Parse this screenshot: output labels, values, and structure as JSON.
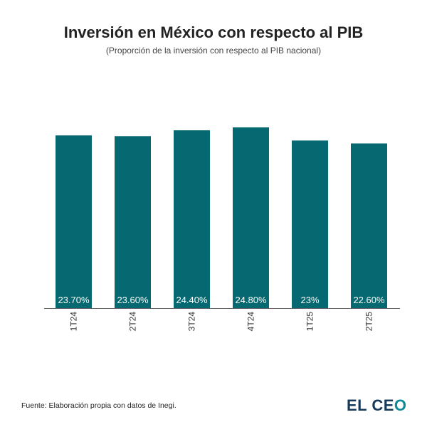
{
  "chart_data": {
    "type": "bar",
    "title": "Inversión en México con respecto al PIB",
    "subtitle": "(Proporción de la inversión con respecto al PIB nacional)",
    "categories": [
      "1T24",
      "2T24",
      "3T24",
      "4T24",
      "1T25",
      "2T25"
    ],
    "values": [
      23.7,
      23.6,
      24.4,
      24.8,
      23.0,
      22.6
    ],
    "data_labels": [
      "23.70%",
      "23.60%",
      "24.40%",
      "24.80%",
      "23%",
      "22.60%"
    ],
    "xlabel": "",
    "ylabel": "",
    "ylim": [
      0,
      24.8
    ],
    "grid": false,
    "bar_color": "#066870"
  },
  "footer": {
    "source": "Fuente: Elaboración propia con datos de Inegi.",
    "logo_text": "EL CEO"
  }
}
